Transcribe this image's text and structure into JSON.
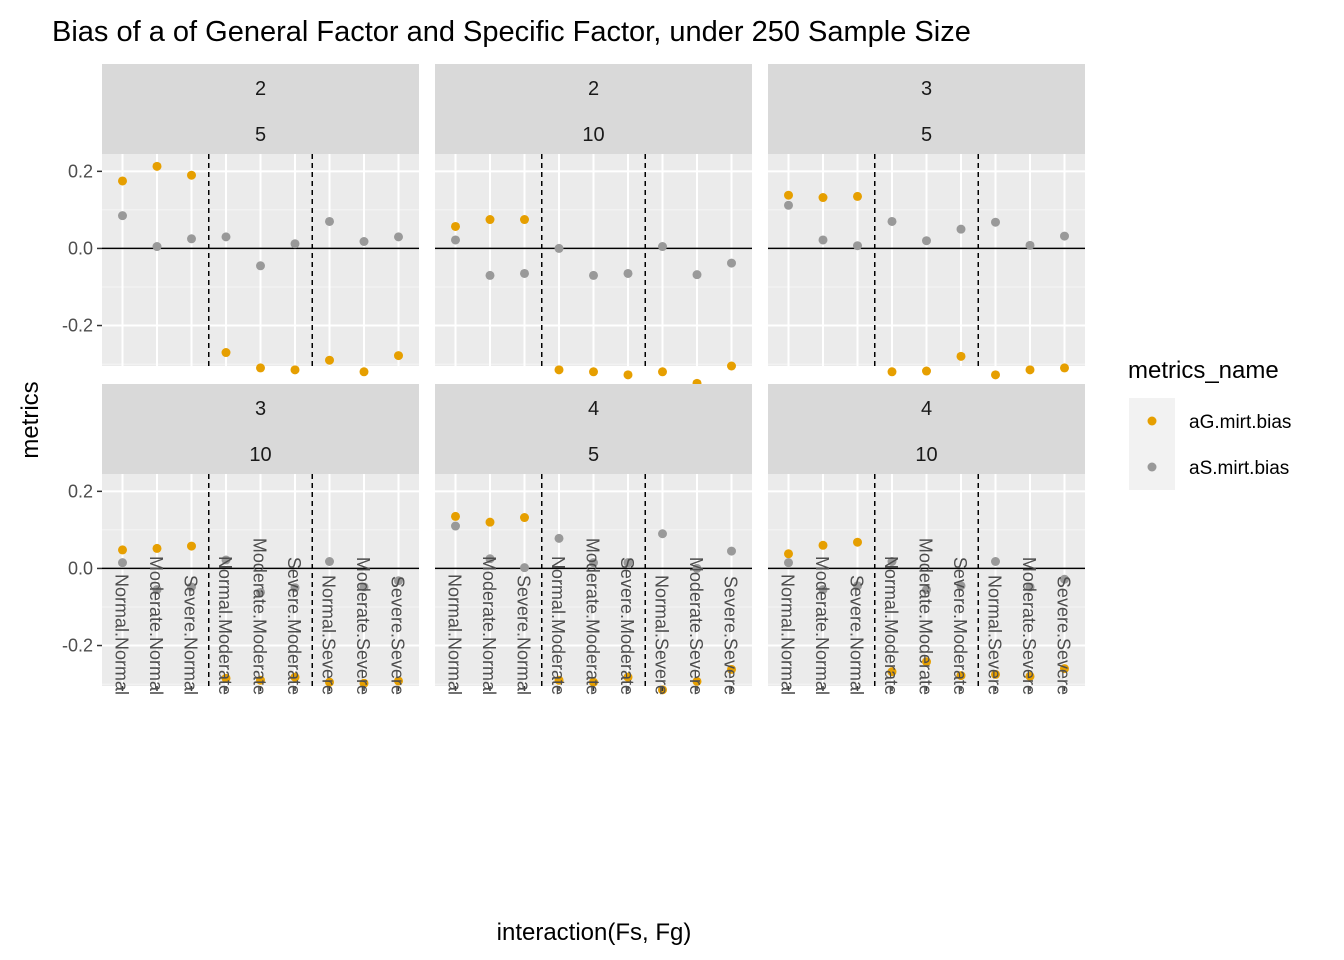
{
  "chart_data": {
    "type": "scatter",
    "title": "Bias of a of General Factor and Specific Factor, under 250 Sample Size",
    "xlabel": "interaction(Fs, Fg)",
    "ylabel": "metrics",
    "categories": [
      "Normal.Normal",
      "Moderate.Normal",
      "Severe.Normal",
      "Normal.Moderate",
      "Moderate.Moderate",
      "Severe.Moderate",
      "Normal.Severe",
      "Moderate.Severe",
      "Severe.Severe"
    ],
    "ylim": [
      -0.305,
      0.245
    ],
    "yticks": [
      -0.2,
      0.0,
      0.2
    ],
    "ytick_labels": [
      "-0.2",
      "0.0",
      "0.2"
    ],
    "hline": 0,
    "vlines_after_category": [
      3,
      6
    ],
    "legend": {
      "title": "metrics_name",
      "position": "right",
      "entries": [
        {
          "name": "aG.mirt.bias",
          "color": "#E69F00"
        },
        {
          "name": "aS.mirt.bias",
          "color": "#999999"
        }
      ]
    },
    "facets": [
      {
        "strip": [
          "2",
          "5"
        ],
        "series": [
          {
            "name": "aG.mirt.bias",
            "values": [
              0.175,
              0.213,
              0.19,
              -0.27,
              -0.31,
              -0.315,
              -0.29,
              -0.32,
              -0.278
            ]
          },
          {
            "name": "aS.mirt.bias",
            "values": [
              0.085,
              0.005,
              0.025,
              0.03,
              -0.045,
              0.012,
              0.07,
              0.018,
              0.03
            ]
          }
        ]
      },
      {
        "strip": [
          "2",
          "10"
        ],
        "series": [
          {
            "name": "aG.mirt.bias",
            "values": [
              0.057,
              0.075,
              0.075,
              -0.315,
              -0.32,
              -0.328,
              -0.32,
              -0.35,
              -0.305
            ]
          },
          {
            "name": "aS.mirt.bias",
            "values": [
              0.022,
              -0.07,
              -0.065,
              0.0,
              -0.07,
              -0.065,
              0.005,
              -0.068,
              -0.038
            ]
          }
        ]
      },
      {
        "strip": [
          "3",
          "5"
        ],
        "series": [
          {
            "name": "aG.mirt.bias",
            "values": [
              0.138,
              0.132,
              0.135,
              -0.32,
              -0.318,
              -0.28,
              -0.328,
              -0.315,
              -0.31
            ]
          },
          {
            "name": "aS.mirt.bias",
            "values": [
              0.112,
              0.022,
              0.007,
              0.07,
              0.02,
              0.05,
              0.068,
              0.008,
              0.032
            ]
          }
        ]
      },
      {
        "strip": [
          "3",
          "10"
        ],
        "series": [
          {
            "name": "aG.mirt.bias",
            "values": [
              0.048,
              0.052,
              0.058,
              -0.285,
              -0.29,
              -0.282,
              -0.295,
              -0.298,
              -0.292
            ]
          },
          {
            "name": "aS.mirt.bias",
            "values": [
              0.015,
              -0.055,
              -0.048,
              0.022,
              -0.062,
              -0.05,
              0.018,
              -0.048,
              -0.032
            ]
          }
        ]
      },
      {
        "strip": [
          "4",
          "5"
        ],
        "series": [
          {
            "name": "aG.mirt.bias",
            "values": [
              0.135,
              0.12,
              0.132,
              -0.29,
              -0.295,
              -0.282,
              -0.315,
              -0.293,
              -0.262
            ]
          },
          {
            "name": "aS.mirt.bias",
            "values": [
              0.11,
              0.025,
              0.002,
              0.078,
              0.015,
              0.015,
              0.09,
              0.0,
              0.045
            ]
          }
        ]
      },
      {
        "strip": [
          "4",
          "10"
        ],
        "series": [
          {
            "name": "aG.mirt.bias",
            "values": [
              0.038,
              0.06,
              0.068,
              -0.268,
              -0.242,
              -0.278,
              -0.275,
              -0.28,
              -0.26
            ]
          },
          {
            "name": "aS.mirt.bias",
            "values": [
              0.015,
              -0.055,
              -0.045,
              0.018,
              -0.055,
              -0.045,
              0.018,
              -0.048,
              -0.028
            ]
          }
        ]
      }
    ]
  }
}
